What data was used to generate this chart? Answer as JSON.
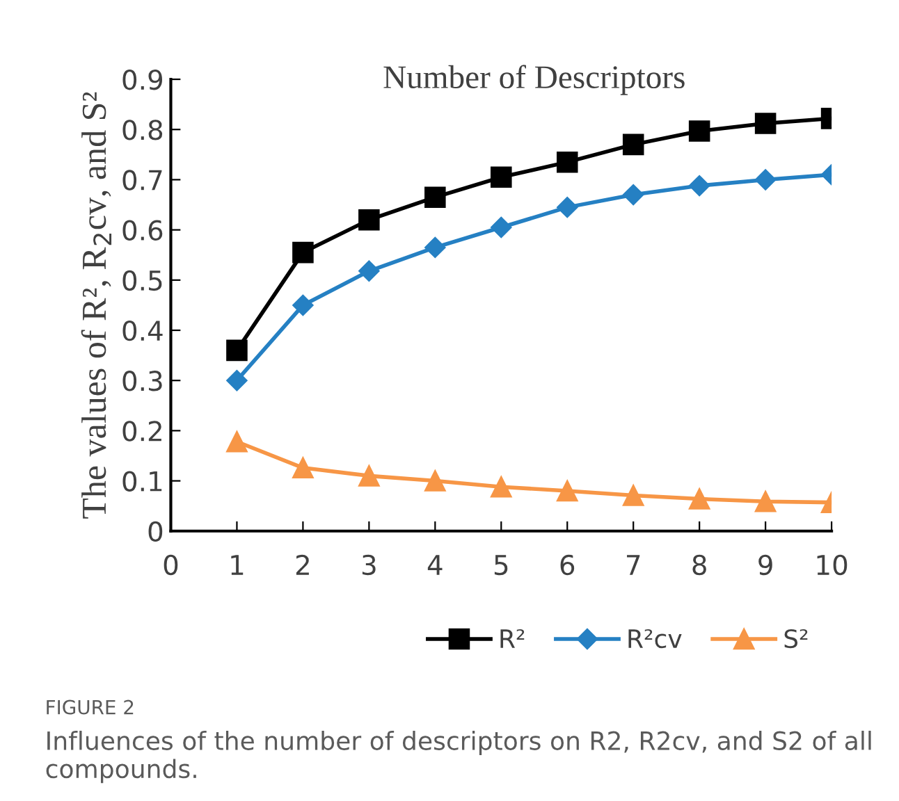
{
  "chart_data": {
    "type": "line",
    "title": "Number of Descriptors",
    "ylabel": "The values of R², R$_{2}$cv, and S²",
    "x": [
      1,
      2,
      3,
      4,
      5,
      6,
      7,
      8,
      9,
      10
    ],
    "series": [
      {
        "name": "R²",
        "color": "#000000",
        "marker": "square",
        "values": [
          0.36,
          0.555,
          0.62,
          0.665,
          0.705,
          0.735,
          0.77,
          0.797,
          0.812,
          0.822
        ]
      },
      {
        "name": "R²cv",
        "color": "#2580c3",
        "marker": "diamond",
        "values": [
          0.3,
          0.45,
          0.518,
          0.565,
          0.605,
          0.645,
          0.67,
          0.688,
          0.7,
          0.71
        ]
      },
      {
        "name": "S²",
        "color": "#f79646",
        "marker": "triangle",
        "values": [
          0.178,
          0.126,
          0.11,
          0.1,
          0.088,
          0.08,
          0.071,
          0.064,
          0.059,
          0.057
        ]
      }
    ],
    "xlim": [
      0,
      10
    ],
    "xticks": [
      0,
      1,
      2,
      3,
      4,
      5,
      6,
      7,
      8,
      9,
      10
    ],
    "ylim": [
      0,
      0.9
    ],
    "yticks": [
      0,
      0.1,
      0.2,
      0.3,
      0.4,
      0.5,
      0.6,
      0.7,
      0.8,
      0.9
    ],
    "grid": false,
    "legend": "bottom",
    "line_style": "solid",
    "annotations": [
      "FIGURE 2",
      "Influences of the number of descriptors on R2, R2cv, and S2 of all compounds."
    ]
  }
}
